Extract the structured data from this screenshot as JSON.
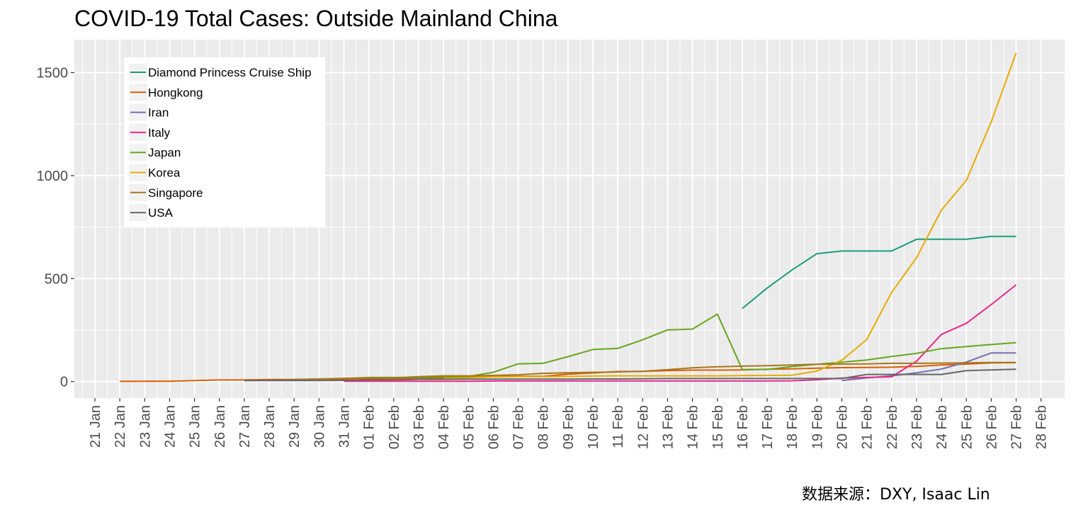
{
  "chart_data": {
    "type": "line",
    "title": "COVID-19 Total Cases: Outside Mainland China",
    "caption": "数据来源：DXY, Isaac Lin",
    "xlabel": "",
    "ylabel": "",
    "grid": true,
    "legend_position": "top-left",
    "ylim": [
      -80,
      1660
    ],
    "yticks": [
      0,
      500,
      1000,
      1500
    ],
    "x": [
      "21 Jan",
      "22 Jan",
      "23 Jan",
      "24 Jan",
      "25 Jan",
      "26 Jan",
      "27 Jan",
      "28 Jan",
      "29 Jan",
      "30 Jan",
      "31 Jan",
      "01 Feb",
      "02 Feb",
      "03 Feb",
      "04 Feb",
      "05 Feb",
      "06 Feb",
      "07 Feb",
      "08 Feb",
      "09 Feb",
      "10 Feb",
      "11 Feb",
      "12 Feb",
      "13 Feb",
      "14 Feb",
      "15 Feb",
      "16 Feb",
      "17 Feb",
      "18 Feb",
      "19 Feb",
      "20 Feb",
      "21 Feb",
      "22 Feb",
      "23 Feb",
      "24 Feb",
      "25 Feb",
      "26 Feb",
      "27 Feb",
      "28 Feb"
    ],
    "series": [
      {
        "name": "Diamond Princess Cruise Ship",
        "color": "#1b9e77",
        "values": [
          null,
          null,
          null,
          null,
          null,
          null,
          null,
          null,
          null,
          null,
          null,
          null,
          null,
          null,
          null,
          null,
          null,
          null,
          null,
          null,
          null,
          null,
          null,
          null,
          null,
          null,
          355,
          454,
          542,
          621,
          634,
          634,
          634,
          691,
          691,
          691,
          705,
          705,
          null
        ]
      },
      {
        "name": "Hongkong",
        "color": "#d95f02",
        "values": [
          null,
          1,
          2,
          2,
          5,
          8,
          8,
          10,
          10,
          12,
          13,
          14,
          15,
          15,
          18,
          21,
          24,
          26,
          26,
          36,
          42,
          49,
          50,
          53,
          56,
          56,
          57,
          60,
          62,
          65,
          68,
          69,
          70,
          74,
          81,
          85,
          91,
          92,
          null
        ]
      },
      {
        "name": "Iran",
        "color": "#7570b3",
        "values": [
          null,
          null,
          null,
          null,
          null,
          null,
          null,
          null,
          null,
          null,
          null,
          null,
          null,
          null,
          null,
          null,
          null,
          null,
          null,
          null,
          null,
          null,
          null,
          null,
          null,
          null,
          null,
          null,
          null,
          null,
          5,
          18,
          28,
          43,
          61,
          95,
          139,
          139,
          null
        ]
      },
      {
        "name": "Italy",
        "color": "#e7298a",
        "values": [
          null,
          null,
          null,
          null,
          null,
          null,
          null,
          null,
          null,
          null,
          2,
          2,
          2,
          2,
          2,
          2,
          3,
          3,
          3,
          3,
          3,
          3,
          3,
          3,
          3,
          3,
          3,
          3,
          4,
          9,
          17,
          20,
          23,
          99,
          229,
          283,
          374,
          470,
          null
        ]
      },
      {
        "name": "Japan",
        "color": "#66a61e",
        "values": [
          null,
          null,
          null,
          null,
          null,
          null,
          null,
          null,
          null,
          null,
          15,
          20,
          20,
          20,
          22,
          25,
          45,
          86,
          89,
          121,
          156,
          161,
          203,
          251,
          255,
          328,
          59,
          59,
          73,
          84,
          94,
          105,
          122,
          137,
          160,
          170,
          180,
          189,
          null
        ]
      },
      {
        "name": "Korea",
        "color": "#e6ab02",
        "values": [
          null,
          null,
          null,
          null,
          null,
          null,
          null,
          null,
          null,
          null,
          null,
          null,
          null,
          null,
          16,
          19,
          23,
          24,
          24,
          25,
          27,
          28,
          28,
          28,
          28,
          28,
          29,
          30,
          31,
          51,
          104,
          204,
          433,
          602,
          833,
          977,
          1261,
          1595,
          null
        ]
      },
      {
        "name": "Singapore",
        "color": "#a6761d",
        "values": [
          null,
          null,
          null,
          null,
          null,
          null,
          5,
          7,
          10,
          13,
          16,
          18,
          18,
          24,
          28,
          28,
          30,
          33,
          40,
          43,
          45,
          47,
          50,
          58,
          67,
          72,
          75,
          77,
          81,
          84,
          85,
          86,
          89,
          89,
          90,
          91,
          93,
          93,
          null
        ]
      },
      {
        "name": "USA",
        "color": "#666666",
        "values": [
          null,
          null,
          null,
          null,
          null,
          null,
          5,
          5,
          5,
          5,
          6,
          8,
          8,
          11,
          11,
          12,
          12,
          12,
          12,
          12,
          13,
          13,
          14,
          15,
          15,
          15,
          15,
          15,
          15,
          15,
          15,
          35,
          35,
          35,
          35,
          53,
          57,
          60,
          null
        ]
      }
    ]
  }
}
